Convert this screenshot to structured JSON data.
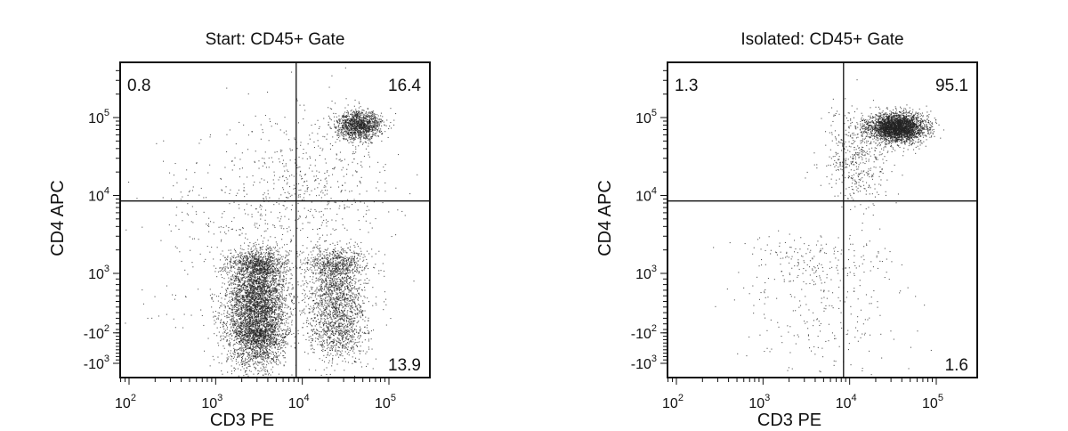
{
  "chart_data": [
    {
      "type": "scatter",
      "title": "Start: CD45+ Gate",
      "xlabel": "CD3 PE",
      "ylabel": "CD4 APC",
      "x_ticks": [
        {
          "base": "10",
          "exp": "2",
          "value": 100
        },
        {
          "base": "10",
          "exp": "3",
          "value": 1000
        },
        {
          "base": "10",
          "exp": "4",
          "value": 10000
        },
        {
          "base": "10",
          "exp": "5",
          "value": 100000
        }
      ],
      "y_ticks": [
        {
          "base": "10",
          "exp": "5",
          "value": 100000
        },
        {
          "base": "10",
          "exp": "4",
          "value": 10000
        },
        {
          "base": "10",
          "exp": "3",
          "value": 1000
        },
        {
          "base": "-10",
          "exp": "2",
          "value": -100
        },
        {
          "base": "-10",
          "exp": "3",
          "value": -1000
        }
      ],
      "quadrant_gate": {
        "x": 8500,
        "y": 8500
      },
      "quadrants": {
        "top_left": "0.8",
        "top_right": "16.4",
        "bottom_left": "",
        "bottom_right": "13.9"
      },
      "populations": [
        {
          "name": "",
          "center_x": 3000,
          "center_y": 400,
          "spread_decades_x": 0.17,
          "spread_decades_y": 0.35,
          "count": 5200
        },
        {
          "name": "",
          "center_x": 25000,
          "center_y": 600,
          "spread_decades_x": 0.17,
          "spread_decades_y": 0.35,
          "count": 2300
        },
        {
          "name": "",
          "center_x": 45000,
          "center_y": 80000,
          "spread_decades_x": 0.13,
          "spread_decades_y": 0.09,
          "count": 1300
        },
        {
          "name": "",
          "center_x": 15000,
          "center_y": 15000,
          "spread_decades_x": 0.4,
          "spread_decades_y": 0.45,
          "count": 400
        },
        {
          "name": "",
          "center_x": 3000,
          "center_y": 3000,
          "spread_decades_x": 0.6,
          "spread_decades_y": 0.8,
          "count": 500
        }
      ],
      "grid": false
    },
    {
      "type": "scatter",
      "title": "Isolated: CD45+ Gate",
      "xlabel": "CD3 PE",
      "ylabel": "CD4 APC",
      "x_ticks": [
        {
          "base": "10",
          "exp": "2",
          "value": 100
        },
        {
          "base": "10",
          "exp": "3",
          "value": 1000
        },
        {
          "base": "10",
          "exp": "4",
          "value": 10000
        },
        {
          "base": "10",
          "exp": "5",
          "value": 100000
        }
      ],
      "y_ticks": [
        {
          "base": "10",
          "exp": "5",
          "value": 100000
        },
        {
          "base": "10",
          "exp": "4",
          "value": 10000
        },
        {
          "base": "10",
          "exp": "3",
          "value": 1000
        },
        {
          "base": "-10",
          "exp": "2",
          "value": -100
        },
        {
          "base": "-10",
          "exp": "3",
          "value": -1000
        }
      ],
      "quadrant_gate": {
        "x": 8500,
        "y": 8500
      },
      "quadrants": {
        "top_left": "1.3",
        "top_right": "95.1",
        "bottom_left": "",
        "bottom_right": "1.6"
      },
      "populations": [
        {
          "name": "",
          "center_x": 35000,
          "center_y": 75000,
          "spread_decades_x": 0.16,
          "spread_decades_y": 0.09,
          "count": 3200
        },
        {
          "name": "",
          "center_x": 12000,
          "center_y": 30000,
          "spread_decades_x": 0.2,
          "spread_decades_y": 0.3,
          "count": 450
        },
        {
          "name": "",
          "center_x": 5000,
          "center_y": 800,
          "spread_decades_x": 0.45,
          "spread_decades_y": 0.5,
          "count": 380
        }
      ],
      "grid": false
    }
  ]
}
